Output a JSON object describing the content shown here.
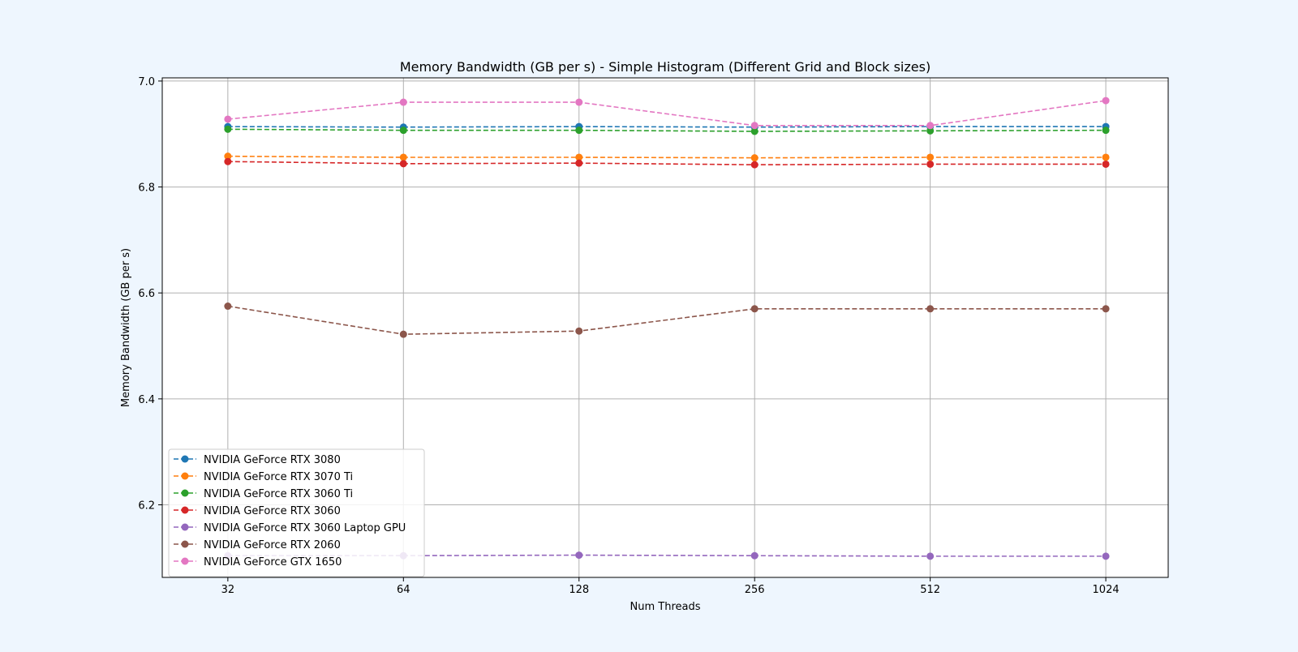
{
  "page": {
    "background": "#eef6fe"
  },
  "chart_data": {
    "type": "line",
    "title": "Memory Bandwidth (GB per s) - Simple Histogram (Different Grid and Block sizes)",
    "xlabel": "Num Threads",
    "ylabel": "Memory Bandwidth (GB per s)",
    "x_scale": "log2",
    "categories": [
      "32",
      "64",
      "128",
      "256",
      "512",
      "1024"
    ],
    "x": [
      32,
      64,
      128,
      256,
      512,
      1024
    ],
    "xlim": [
      24.7,
      1310
    ],
    "ylim": [
      6.063,
      7.006
    ],
    "yticks": [
      6.2,
      6.4,
      6.6,
      6.8,
      7.0
    ],
    "ytick_labels": [
      "6.2",
      "6.4",
      "6.6",
      "6.8",
      "7.0"
    ],
    "grid": true,
    "legend_position": "lower-left",
    "line_style": "dashed",
    "marker": "circle",
    "series": [
      {
        "name": "NVIDIA GeForce RTX 3080",
        "color": "#1f77b4",
        "values": [
          6.914,
          6.913,
          6.914,
          6.913,
          6.914,
          6.914
        ]
      },
      {
        "name": "NVIDIA GeForce RTX 3070 Ti",
        "color": "#ff7f0e",
        "values": [
          6.858,
          6.856,
          6.856,
          6.855,
          6.856,
          6.856
        ]
      },
      {
        "name": "NVIDIA GeForce RTX 3060 Ti",
        "color": "#2ca02c",
        "values": [
          6.909,
          6.907,
          6.907,
          6.905,
          6.906,
          6.907
        ]
      },
      {
        "name": "NVIDIA GeForce RTX 3060",
        "color": "#d62728",
        "values": [
          6.848,
          6.844,
          6.845,
          6.842,
          6.843,
          6.843
        ]
      },
      {
        "name": "NVIDIA GeForce RTX 3060 Laptop GPU",
        "color": "#9467bd",
        "values": [
          6.104,
          6.104,
          6.105,
          6.104,
          6.103,
          6.103
        ]
      },
      {
        "name": "NVIDIA GeForce RTX 2060",
        "color": "#8c564b",
        "values": [
          6.575,
          6.522,
          6.528,
          6.57,
          6.57,
          6.57
        ]
      },
      {
        "name": "NVIDIA GeForce GTX 1650",
        "color": "#e377c2",
        "values": [
          6.928,
          6.96,
          6.96,
          6.916,
          6.916,
          6.963
        ]
      }
    ]
  }
}
